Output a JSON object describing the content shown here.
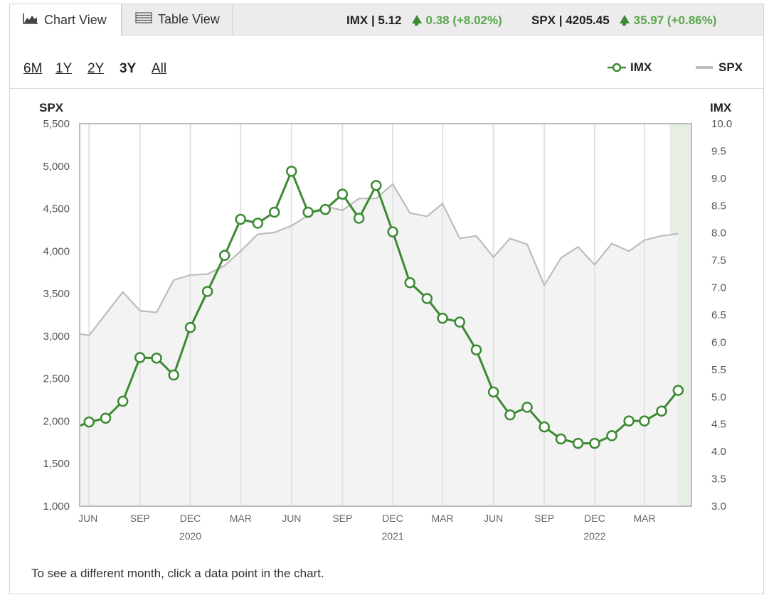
{
  "tabs": [
    {
      "label": "Chart View",
      "active": true,
      "icon": "area-chart-icon"
    },
    {
      "label": "Table View",
      "active": false,
      "icon": "table-icon"
    }
  ],
  "quotes": [
    {
      "symbol": "IMX | 5.12",
      "change": "0.38 (+8.02%)",
      "direction": "up"
    },
    {
      "symbol": "SPX | 4205.45",
      "change": "35.97 (+0.86%)",
      "direction": "up"
    }
  ],
  "ranges": [
    {
      "label": "6M",
      "active": false
    },
    {
      "label": "1Y",
      "active": false
    },
    {
      "label": "2Y",
      "active": false
    },
    {
      "label": "3Y",
      "active": true
    },
    {
      "label": "All",
      "active": false
    }
  ],
  "legend": [
    {
      "label": "IMX",
      "color": "#3c8a33"
    },
    {
      "label": "SPX",
      "color": "#bdbdbd"
    }
  ],
  "footnote": "To see a different month, click a data point in the chart.",
  "chart_data": {
    "type": "line",
    "left_axis_title": "SPX",
    "right_axis_title": "IMX",
    "left_ylim": [
      1000,
      5500
    ],
    "left_ticks": [
      "1,000",
      "1,500",
      "2,000",
      "2,500",
      "3,000",
      "3,500",
      "4,000",
      "4,500",
      "5,000",
      "5,500"
    ],
    "right_ylim": [
      3.0,
      10.0
    ],
    "right_ticks": [
      "3.0",
      "3.5",
      "4.0",
      "4.5",
      "5.0",
      "5.5",
      "6.0",
      "6.5",
      "7.0",
      "7.5",
      "8.0",
      "8.5",
      "9.0",
      "9.5",
      "10.0"
    ],
    "x_start": "2019-05-15",
    "x_end": "2022-05-25",
    "x_tick_labels": [
      {
        "label": "JUN",
        "date": "2019-06-01"
      },
      {
        "label": "SEP",
        "date": "2019-09-01"
      },
      {
        "label": "DEC",
        "date": "2019-12-01"
      },
      {
        "label": "MAR",
        "date": "2020-03-01"
      },
      {
        "label": "JUN",
        "date": "2020-06-01"
      },
      {
        "label": "SEP",
        "date": "2020-09-01"
      },
      {
        "label": "DEC",
        "date": "2020-12-01"
      },
      {
        "label": "MAR",
        "date": "2021-03-01"
      },
      {
        "label": "JUN",
        "date": "2021-06-01"
      },
      {
        "label": "SEP",
        "date": "2021-09-01"
      },
      {
        "label": "DEC",
        "date": "2021-12-01"
      },
      {
        "label": "MAR",
        "date": "2022-03-01"
      }
    ],
    "year_labels": [
      {
        "label": "2020",
        "date": "2019-12-01"
      },
      {
        "label": "2021",
        "date": "2020-12-01"
      },
      {
        "label": "2022",
        "date": "2021-12-01"
      }
    ],
    "grid_lines": "vertical",
    "highlight_latest_month": true,
    "series": [
      {
        "name": "SPX",
        "axis": "left",
        "color": "#bdbdbd",
        "style": "area",
        "points": [
          [
            "2019-05-15",
            3025
          ],
          [
            "2019-06-01",
            3010
          ],
          [
            "2019-07-01",
            3260
          ],
          [
            "2019-08-01",
            3520
          ],
          [
            "2019-09-01",
            3300
          ],
          [
            "2019-10-01",
            3280
          ],
          [
            "2019-11-01",
            3660
          ],
          [
            "2019-12-01",
            3720
          ],
          [
            "2020-01-01",
            3730
          ],
          [
            "2020-02-01",
            3830
          ],
          [
            "2020-03-01",
            4000
          ],
          [
            "2020-04-01",
            4200
          ],
          [
            "2020-05-01",
            4220
          ],
          [
            "2020-06-01",
            4300
          ],
          [
            "2020-07-01",
            4420
          ],
          [
            "2020-08-01",
            4530
          ],
          [
            "2020-09-01",
            4480
          ],
          [
            "2020-10-01",
            4620
          ],
          [
            "2020-11-01",
            4620
          ],
          [
            "2020-12-01",
            4790
          ],
          [
            "2021-01-01",
            4450
          ],
          [
            "2021-02-01",
            4410
          ],
          [
            "2021-03-01",
            4560
          ],
          [
            "2021-04-01",
            4150
          ],
          [
            "2021-05-01",
            4180
          ],
          [
            "2021-06-01",
            3930
          ],
          [
            "2021-07-01",
            4150
          ],
          [
            "2021-08-01",
            4080
          ],
          [
            "2021-09-01",
            3600
          ],
          [
            "2021-10-01",
            3920
          ],
          [
            "2021-11-01",
            4050
          ],
          [
            "2021-12-01",
            3840
          ],
          [
            "2022-01-01",
            4090
          ],
          [
            "2022-02-01",
            4000
          ],
          [
            "2022-03-01",
            4130
          ],
          [
            "2022-04-01",
            4180
          ],
          [
            "2022-05-01",
            4205
          ]
        ]
      },
      {
        "name": "IMX",
        "axis": "right",
        "color": "#3c8a33",
        "style": "line-markers",
        "points": [
          [
            "2019-05-15",
            4.47
          ],
          [
            "2019-06-01",
            4.54
          ],
          [
            "2019-07-01",
            4.61
          ],
          [
            "2019-08-01",
            4.92
          ],
          [
            "2019-09-01",
            5.72
          ],
          [
            "2019-10-01",
            5.71
          ],
          [
            "2019-11-01",
            5.4
          ],
          [
            "2019-12-01",
            6.27
          ],
          [
            "2020-01-01",
            6.93
          ],
          [
            "2020-02-01",
            7.59
          ],
          [
            "2020-03-01",
            8.25
          ],
          [
            "2020-04-01",
            8.18
          ],
          [
            "2020-05-01",
            8.38
          ],
          [
            "2020-06-01",
            9.13
          ],
          [
            "2020-07-01",
            8.38
          ],
          [
            "2020-08-01",
            8.43
          ],
          [
            "2020-09-01",
            8.71
          ],
          [
            "2020-10-01",
            8.27
          ],
          [
            "2020-11-01",
            8.87
          ],
          [
            "2020-12-01",
            8.02
          ],
          [
            "2021-01-01",
            7.09
          ],
          [
            "2021-02-01",
            6.8
          ],
          [
            "2021-03-01",
            6.44
          ],
          [
            "2021-04-01",
            6.37
          ],
          [
            "2021-05-01",
            5.86
          ],
          [
            "2021-06-01",
            5.09
          ],
          [
            "2021-07-01",
            4.67
          ],
          [
            "2021-08-01",
            4.81
          ],
          [
            "2021-09-01",
            4.45
          ],
          [
            "2021-10-01",
            4.23
          ],
          [
            "2021-11-01",
            4.15
          ],
          [
            "2021-12-01",
            4.15
          ],
          [
            "2022-01-01",
            4.29
          ],
          [
            "2022-02-01",
            4.56
          ],
          [
            "2022-03-01",
            4.56
          ],
          [
            "2022-04-01",
            4.74
          ],
          [
            "2022-05-01",
            5.12
          ]
        ]
      }
    ]
  }
}
